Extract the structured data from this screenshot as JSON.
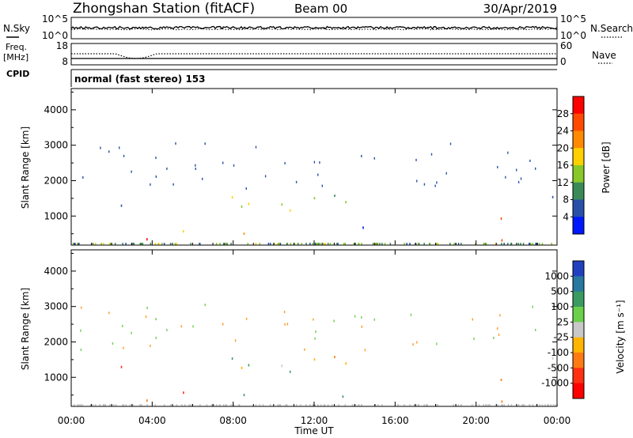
{
  "header": {
    "station": "Zhongshan Station (fitACF)",
    "beam": "Beam 00",
    "date": "30/Apr/2019"
  },
  "strip_noise": {
    "left_label": "N.Sky",
    "right_label": "N.Search",
    "left_ticks": [
      "10^5",
      "10^0"
    ],
    "right_ticks": [
      "10^5",
      "10^0"
    ]
  },
  "strip_freq": {
    "left_label_top": "Freq.",
    "left_label_bottom": "[MHz]",
    "left_ticks": [
      "18",
      "8"
    ],
    "right_ticks": [
      "60",
      "0"
    ],
    "right_label": "Nave",
    "cpid_label": "CPID",
    "cpid_value": "normal (fast stereo) 153"
  },
  "x_axis": {
    "label": "Time UT",
    "ticks": [
      "00:00",
      "04:00",
      "08:00",
      "12:00",
      "16:00",
      "20:00",
      "00:00"
    ]
  },
  "panel_power": {
    "ylabel": "Slant Range [km]",
    "yticks": [
      "4000",
      "3000",
      "2000",
      "1000"
    ],
    "cbar_label": "Power [dB]",
    "cbar_ticks": [
      "28",
      "24",
      "20",
      "16",
      "12",
      "8",
      "4"
    ],
    "cbar_colors": [
      "#ff0000",
      "#ff4a00",
      "#ff8a00",
      "#ffd000",
      "#88c828",
      "#3a8a58",
      "#2850a8",
      "#0018ff"
    ]
  },
  "panel_velocity": {
    "ylabel": "Slant Range [km]",
    "yticks": [
      "4000",
      "3000",
      "2000",
      "1000"
    ],
    "cbar_label": "Velocity [m s⁻¹]",
    "cbar_ticks": [
      "1000",
      "500",
      "100",
      "25",
      "-25",
      "-100",
      "-500",
      "-1000"
    ],
    "cbar_colors": [
      "#2040c0",
      "#2878a0",
      "#3a9a60",
      "#6ad04a",
      "#c8c8c8",
      "#ffb400",
      "#ff7a10",
      "#ff3010",
      "#ff0000"
    ]
  },
  "chart_data": [
    {
      "type": "heatmap",
      "title": "Power",
      "xlabel": "Time UT",
      "ylabel": "Slant Range [km]",
      "xlim": [
        "00:00",
        "24:00"
      ],
      "ylim": [
        180,
        4600
      ],
      "colorbar": {
        "label": "Power [dB]",
        "range": [
          0,
          30
        ]
      },
      "regions": [
        {
          "t_start": 1.8,
          "t_end": 2.6,
          "range_min": 700,
          "range_max": 1300,
          "value_db": 8
        },
        {
          "t_start": 2.5,
          "t_end": 6.7,
          "range_min": 250,
          "range_max": 700,
          "value_db": 24
        },
        {
          "t_start": 5.6,
          "t_end": 10.8,
          "range_min": 500,
          "range_max": 1600,
          "value_db": 14
        },
        {
          "t_start": 11.5,
          "t_end": 14.0,
          "range_min": 700,
          "range_max": 1800,
          "value_db": 14
        },
        {
          "t_start": 14.0,
          "t_end": 15.0,
          "range_min": 600,
          "range_max": 1400,
          "value_db": 8
        },
        {
          "t_start": 20.1,
          "t_end": 21.8,
          "range_min": 250,
          "range_max": 1100,
          "value_db": 20
        },
        {
          "t_start": 22.7,
          "t_end": 24.0,
          "range_min": 1500,
          "range_max": 2000,
          "value_db": 6
        }
      ]
    },
    {
      "type": "heatmap",
      "title": "Velocity",
      "xlabel": "Time UT",
      "ylabel": "Slant Range [km]",
      "xlim": [
        "00:00",
        "24:00"
      ],
      "ylim": [
        180,
        4600
      ],
      "colorbar": {
        "label": "Velocity [m s⁻¹]",
        "range": [
          -1000,
          1000
        ]
      },
      "regions": [
        {
          "t_start": 1.8,
          "t_end": 2.6,
          "range_min": 700,
          "range_max": 1300,
          "value_ms": -500
        },
        {
          "t_start": 2.5,
          "t_end": 6.7,
          "range_min": 250,
          "range_max": 700,
          "value_ms": -300
        },
        {
          "t_start": 5.6,
          "t_end": 10.8,
          "range_min": 500,
          "range_max": 1600,
          "value_ms": 50
        },
        {
          "t_start": 11.5,
          "t_end": 14.0,
          "range_min": 700,
          "range_max": 1800,
          "value_ms": 0
        },
        {
          "t_start": 13.0,
          "t_end": 14.0,
          "range_min": 400,
          "range_max": 1000,
          "value_ms": 500
        },
        {
          "t_start": 20.1,
          "t_end": 21.8,
          "range_min": 250,
          "range_max": 1100,
          "value_ms": -400
        },
        {
          "t_start": 22.7,
          "t_end": 24.0,
          "range_min": 1500,
          "range_max": 2000,
          "value_ms": 0
        }
      ]
    }
  ]
}
